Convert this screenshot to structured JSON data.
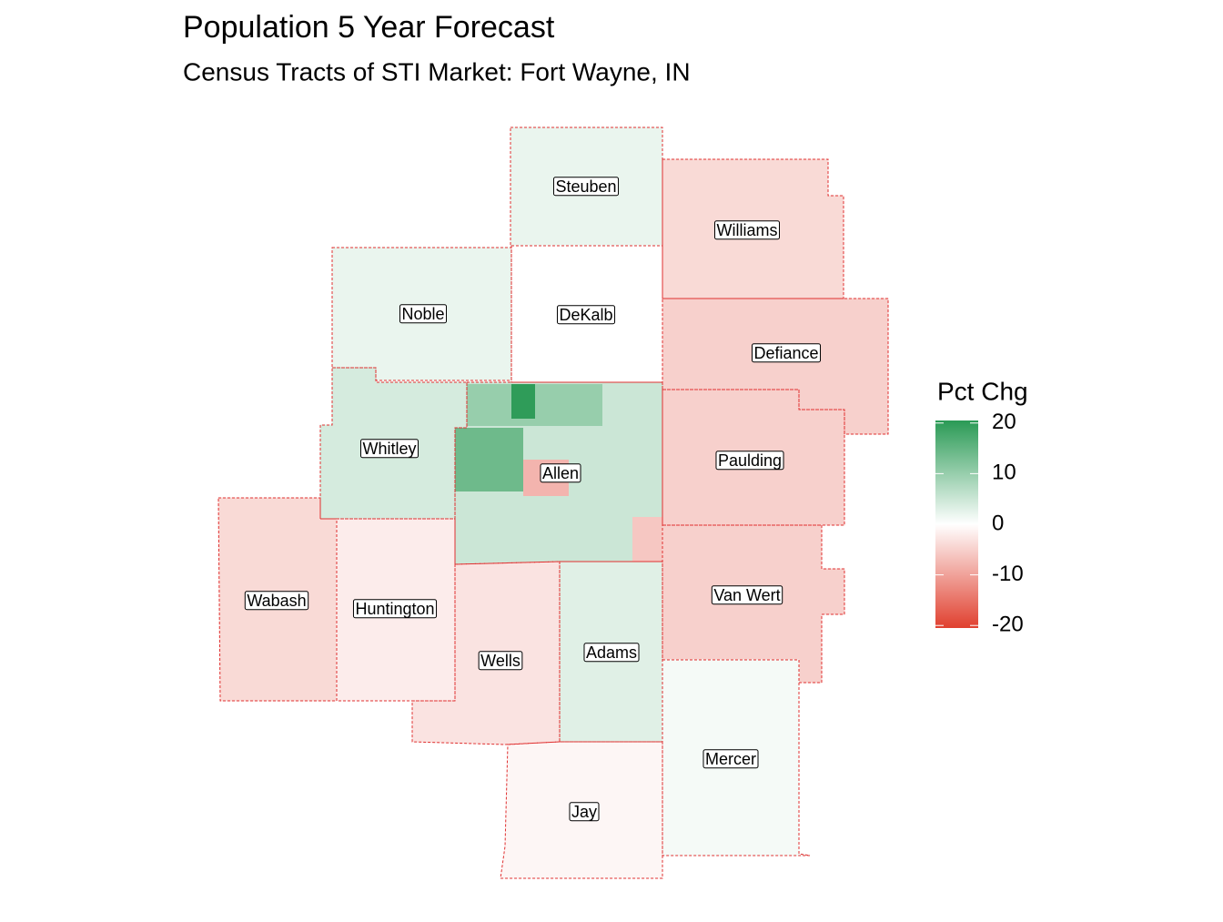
{
  "chart_data": {
    "type": "choropleth",
    "title": "Population 5 Year Forecast",
    "subtitle": "Census Tracts of STI Market: Fort Wayne, IN",
    "legend": {
      "title": "Pct Chg",
      "limits": [
        -20.5,
        20.5
      ],
      "ticks": [
        20,
        10,
        0,
        -10,
        -20
      ],
      "colors": {
        "low": "#e0402f",
        "mid": "#ffffff",
        "high": "#2a9a55"
      }
    },
    "regions": [
      {
        "name": "Steuben",
        "value": 2
      },
      {
        "name": "Williams",
        "value": -4
      },
      {
        "name": "Noble",
        "value": 2
      },
      {
        "name": "DeKalb",
        "value": 0
      },
      {
        "name": "Defiance",
        "value": -5
      },
      {
        "name": "Whitley",
        "value": 4
      },
      {
        "name": "Allen",
        "value": 5
      },
      {
        "name": "Paulding",
        "value": -5
      },
      {
        "name": "Wabash",
        "value": -4
      },
      {
        "name": "Huntington",
        "value": -2
      },
      {
        "name": "Wells",
        "value": -3
      },
      {
        "name": "Adams",
        "value": 3
      },
      {
        "name": "Van Wert",
        "value": -5
      },
      {
        "name": "Mercer",
        "value": 1
      },
      {
        "name": "Jay",
        "value": -1
      }
    ],
    "tract_values": [
      10,
      14,
      20,
      -8,
      -6
    ]
  }
}
